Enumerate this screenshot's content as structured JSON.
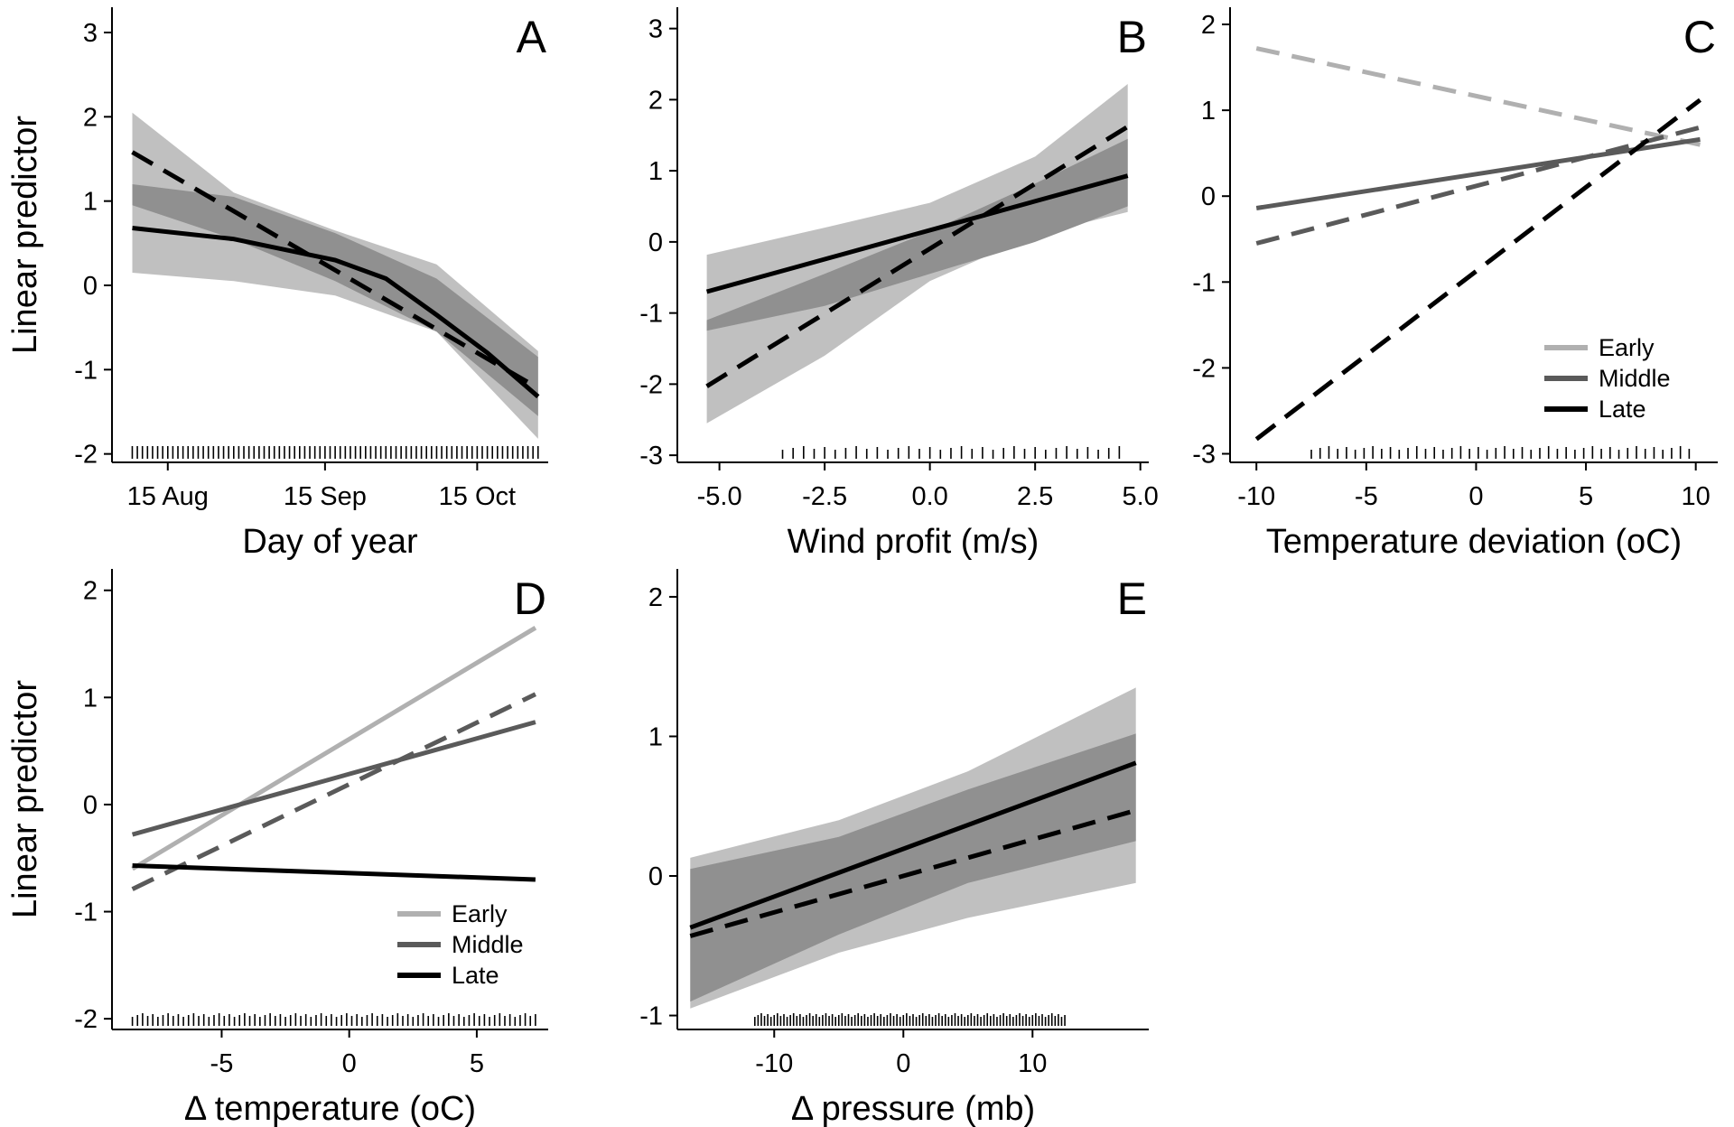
{
  "chart_data": [
    {
      "panel": "A",
      "type": "line",
      "xlabel": "Day of year",
      "ylabel": "Linear predictor",
      "x_unit": "day of year",
      "xlim": [
        216,
        302
      ],
      "ylim": [
        -2.1,
        3.3
      ],
      "yticks": [
        -2,
        -1,
        0,
        1,
        2,
        3
      ],
      "xticks": [
        {
          "value": 227,
          "label": "15 Aug"
        },
        {
          "value": 258,
          "label": "15 Sep"
        },
        {
          "value": 288,
          "label": "15 Oct"
        }
      ],
      "bands": [
        {
          "color": "#c0c0c0",
          "x": [
            220,
            240,
            260,
            280,
            300
          ],
          "lower": [
            0.15,
            0.05,
            -0.12,
            -0.55,
            -1.82
          ],
          "upper": [
            2.05,
            1.1,
            0.65,
            0.25,
            -0.78
          ]
        },
        {
          "color": "#909090",
          "x": [
            220,
            240,
            260,
            280,
            300
          ],
          "lower": [
            0.95,
            0.55,
            0.05,
            -0.55,
            -1.55
          ],
          "upper": [
            1.2,
            1.05,
            0.62,
            0.08,
            -0.85
          ]
        }
      ],
      "series": [
        {
          "style": "solid",
          "color": "#000000",
          "x": [
            220,
            240,
            260,
            270,
            280,
            290,
            300
          ],
          "y": [
            0.68,
            0.55,
            0.3,
            0.08,
            -0.35,
            -0.8,
            -1.32
          ]
        },
        {
          "style": "dashed",
          "color": "#000000",
          "x": [
            220,
            300
          ],
          "y": [
            1.58,
            -1.22
          ]
        }
      ],
      "rug": {
        "from": 220,
        "to": 300,
        "step": 1
      }
    },
    {
      "panel": "B",
      "type": "line",
      "xlabel": "Wind profit (m/s)",
      "ylabel": "",
      "xlim": [
        -6.0,
        5.2
      ],
      "ylim": [
        -3.1,
        3.3
      ],
      "yticks": [
        -3,
        -2,
        -1,
        0,
        1,
        2,
        3
      ],
      "xticks": [
        {
          "value": -5,
          "label": "-5.0"
        },
        {
          "value": -2.5,
          "label": "-2.5"
        },
        {
          "value": 0,
          "label": "0.0"
        },
        {
          "value": 2.5,
          "label": "2.5"
        },
        {
          "value": 5,
          "label": "5.0"
        }
      ],
      "bands": [
        {
          "color": "#c0c0c0",
          "x": [
            -5.3,
            -2.5,
            0,
            2.5,
            4.7
          ],
          "lower": [
            -2.55,
            -1.6,
            -0.55,
            0.1,
            0.42
          ],
          "upper": [
            -0.18,
            0.2,
            0.55,
            1.2,
            2.22
          ]
        },
        {
          "color": "#909090",
          "x": [
            -5.3,
            -2.5,
            0,
            2.5,
            4.7
          ],
          "lower": [
            -1.25,
            -0.9,
            -0.45,
            0.0,
            0.5
          ],
          "upper": [
            -1.1,
            -0.45,
            0.15,
            0.82,
            1.45
          ]
        }
      ],
      "series": [
        {
          "style": "solid",
          "color": "#000000",
          "x": [
            -5.3,
            4.7
          ],
          "y": [
            -0.7,
            0.93
          ]
        },
        {
          "style": "dashed",
          "color": "#000000",
          "x": [
            -5.3,
            4.7
          ],
          "y": [
            -2.03,
            1.62
          ]
        }
      ],
      "rug": {
        "from": -3.5,
        "to": 4.5,
        "step": 0.25
      }
    },
    {
      "panel": "C",
      "type": "line",
      "xlabel": "Temperature deviation (oC)",
      "ylabel": "",
      "xlim": [
        -11.2,
        11.0
      ],
      "ylim": [
        -3.1,
        2.2
      ],
      "yticks": [
        -3,
        -2,
        -1,
        0,
        1,
        2
      ],
      "xticks": [
        {
          "value": -10,
          "label": "-10"
        },
        {
          "value": -5,
          "label": "-5"
        },
        {
          "value": 0,
          "label": "0"
        },
        {
          "value": 5,
          "label": "5"
        },
        {
          "value": 10,
          "label": "10"
        }
      ],
      "series": [
        {
          "name": "Early",
          "style": "dashed",
          "color": "#b0b0b0",
          "x": [
            -10,
            10.2
          ],
          "y": [
            1.72,
            0.6
          ]
        },
        {
          "name": "Middle",
          "style": "solid",
          "color": "#5a5a5a",
          "x": [
            -10,
            10.2
          ],
          "y": [
            -0.14,
            0.66
          ]
        },
        {
          "style": "dashed",
          "color": "#5a5a5a",
          "x": [
            -10,
            10.2
          ],
          "y": [
            -0.55,
            0.8
          ]
        },
        {
          "name": "Late",
          "style": "dashed",
          "color": "#000000",
          "x": [
            -10,
            10.2
          ],
          "y": [
            -2.83,
            1.12
          ]
        }
      ],
      "legend": {
        "position": "bottom-right",
        "entries": [
          {
            "label": "Early",
            "color": "#b0b0b0"
          },
          {
            "label": "Middle",
            "color": "#5a5a5a"
          },
          {
            "label": "Late",
            "color": "#000000"
          }
        ]
      },
      "rug": {
        "from": -7.5,
        "to": 10,
        "step": 0.4
      }
    },
    {
      "panel": "D",
      "type": "line",
      "xlabel": "Δ temperature (oC)",
      "ylabel": "Linear predictor",
      "xlim": [
        -9.3,
        7.8
      ],
      "ylim": [
        -2.1,
        2.2
      ],
      "yticks": [
        -2,
        -1,
        0,
        1,
        2
      ],
      "xticks": [
        {
          "value": -5,
          "label": "-5"
        },
        {
          "value": 0,
          "label": "0"
        },
        {
          "value": 5,
          "label": "5"
        }
      ],
      "series": [
        {
          "name": "Early",
          "style": "solid",
          "color": "#b0b0b0",
          "x": [
            -8.5,
            7.3
          ],
          "y": [
            -0.6,
            1.65
          ]
        },
        {
          "name": "Middle",
          "style": "solid",
          "color": "#5a5a5a",
          "x": [
            -8.5,
            7.3
          ],
          "y": [
            -0.28,
            0.77
          ]
        },
        {
          "style": "dashed",
          "color": "#5a5a5a",
          "x": [
            -8.5,
            7.3
          ],
          "y": [
            -0.79,
            1.03
          ]
        },
        {
          "name": "Late",
          "style": "solid",
          "color": "#000000",
          "x": [
            -8.5,
            7.3
          ],
          "y": [
            -0.57,
            -0.7
          ]
        }
      ],
      "legend": {
        "position": "bottom-right",
        "entries": [
          {
            "label": "Early",
            "color": "#b0b0b0"
          },
          {
            "label": "Middle",
            "color": "#5a5a5a"
          },
          {
            "label": "Late",
            "color": "#000000"
          }
        ]
      },
      "rug": {
        "from": -8.5,
        "to": 7.3,
        "step": 0.2
      }
    },
    {
      "panel": "E",
      "type": "line",
      "xlabel": "Δ pressure (mb)",
      "ylabel": "",
      "xlim": [
        -17.5,
        19.0
      ],
      "ylim": [
        -1.1,
        2.2
      ],
      "yticks": [
        -1,
        0,
        1,
        2
      ],
      "xticks": [
        {
          "value": -10,
          "label": "-10"
        },
        {
          "value": 0,
          "label": "0"
        },
        {
          "value": 10,
          "label": "10"
        }
      ],
      "bands": [
        {
          "color": "#c0c0c0",
          "x": [
            -16.5,
            -5,
            5,
            18
          ],
          "lower": [
            -0.95,
            -0.55,
            -0.3,
            -0.05
          ],
          "upper": [
            0.13,
            0.4,
            0.75,
            1.35
          ]
        },
        {
          "color": "#909090",
          "x": [
            -16.5,
            -5,
            5,
            18
          ],
          "lower": [
            -0.9,
            -0.42,
            -0.05,
            0.25
          ],
          "upper": [
            0.05,
            0.28,
            0.62,
            1.02
          ]
        }
      ],
      "series": [
        {
          "style": "solid",
          "color": "#000000",
          "x": [
            -16.5,
            18
          ],
          "y": [
            -0.37,
            0.81
          ]
        },
        {
          "style": "dashed",
          "color": "#000000",
          "x": [
            -16.5,
            18
          ],
          "y": [
            -0.43,
            0.47
          ]
        }
      ],
      "rug": {
        "from": -11.5,
        "to": 12.5,
        "step": 0.25
      }
    }
  ]
}
